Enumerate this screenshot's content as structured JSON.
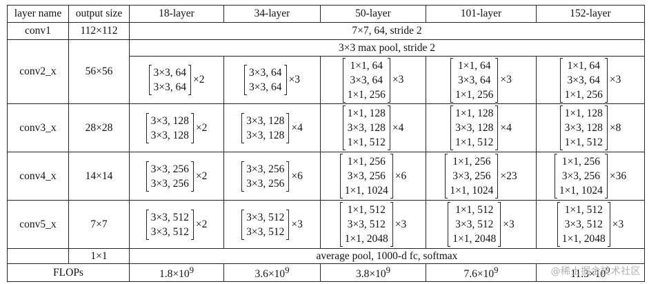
{
  "header": {
    "layer_name": "layer name",
    "output_size": "output size",
    "models": [
      "18-layer",
      "34-layer",
      "50-layer",
      "101-layer",
      "152-layer"
    ]
  },
  "conv1": {
    "name": "conv1",
    "size": "112×112",
    "spec": "7×7, 64, stride 2"
  },
  "pool": {
    "spec": "3×3 max pool, stride 2"
  },
  "stages": [
    {
      "name": "conv2_x",
      "size": "56×56",
      "cells": [
        {
          "lines": [
            "3×3, 64",
            "3×3, 64"
          ],
          "rep": "×2"
        },
        {
          "lines": [
            "3×3, 64",
            "3×3, 64"
          ],
          "rep": "×3"
        },
        {
          "lines": [
            "1×1, 64",
            "3×3, 64",
            "1×1, 256"
          ],
          "rep": "×3"
        },
        {
          "lines": [
            "1×1, 64",
            "3×3, 64",
            "1×1, 256"
          ],
          "rep": "×3"
        },
        {
          "lines": [
            "1×1, 64",
            "3×3, 64",
            "1×1, 256"
          ],
          "rep": "×3"
        }
      ]
    },
    {
      "name": "conv3_x",
      "size": "28×28",
      "cells": [
        {
          "lines": [
            "3×3, 128",
            "3×3, 128"
          ],
          "rep": "×2"
        },
        {
          "lines": [
            "3×3, 128",
            "3×3, 128"
          ],
          "rep": "×4"
        },
        {
          "lines": [
            "1×1, 128",
            "3×3, 128",
            "1×1, 512"
          ],
          "rep": "×4"
        },
        {
          "lines": [
            "1×1, 128",
            "3×3, 128",
            "1×1, 512"
          ],
          "rep": "×4"
        },
        {
          "lines": [
            "1×1, 128",
            "3×3, 128",
            "1×1, 512"
          ],
          "rep": "×8"
        }
      ]
    },
    {
      "name": "conv4_x",
      "size": "14×14",
      "cells": [
        {
          "lines": [
            "3×3, 256",
            "3×3, 256"
          ],
          "rep": "×2"
        },
        {
          "lines": [
            "3×3, 256",
            "3×3, 256"
          ],
          "rep": "×6"
        },
        {
          "lines": [
            "1×1, 256",
            "3×3, 256",
            "1×1, 1024"
          ],
          "rep": "×6"
        },
        {
          "lines": [
            "1×1, 256",
            "3×3, 256",
            "1×1, 1024"
          ],
          "rep": "×23"
        },
        {
          "lines": [
            "1×1, 256",
            "3×3, 256",
            "1×1, 1024"
          ],
          "rep": "×36"
        }
      ]
    },
    {
      "name": "conv5_x",
      "size": "7×7",
      "cells": [
        {
          "lines": [
            "3×3, 512",
            "3×3, 512"
          ],
          "rep": "×2"
        },
        {
          "lines": [
            "3×3, 512",
            "3×3, 512"
          ],
          "rep": "×3"
        },
        {
          "lines": [
            "1×1, 512",
            "3×3, 512",
            "1×1, 2048"
          ],
          "rep": "×3"
        },
        {
          "lines": [
            "1×1, 512",
            "3×3, 512",
            "1×1, 2048"
          ],
          "rep": "×3"
        },
        {
          "lines": [
            "1×1, 512",
            "3×3, 512",
            "1×1, 2048"
          ],
          "rep": "×3"
        }
      ]
    }
  ],
  "final": {
    "size": "1×1",
    "spec": "average pool, 1000-d fc, softmax"
  },
  "flops": {
    "label": "FLOPs",
    "values": [
      {
        "mant": "1.8×10",
        "exp": "9"
      },
      {
        "mant": "3.6×10",
        "exp": "9"
      },
      {
        "mant": "3.8×10",
        "exp": "9"
      },
      {
        "mant": "7.6×10",
        "exp": "9"
      },
      {
        "mant": "11.3×10",
        "exp": "9"
      }
    ]
  },
  "watermark": "@稀土掘金技术社区"
}
